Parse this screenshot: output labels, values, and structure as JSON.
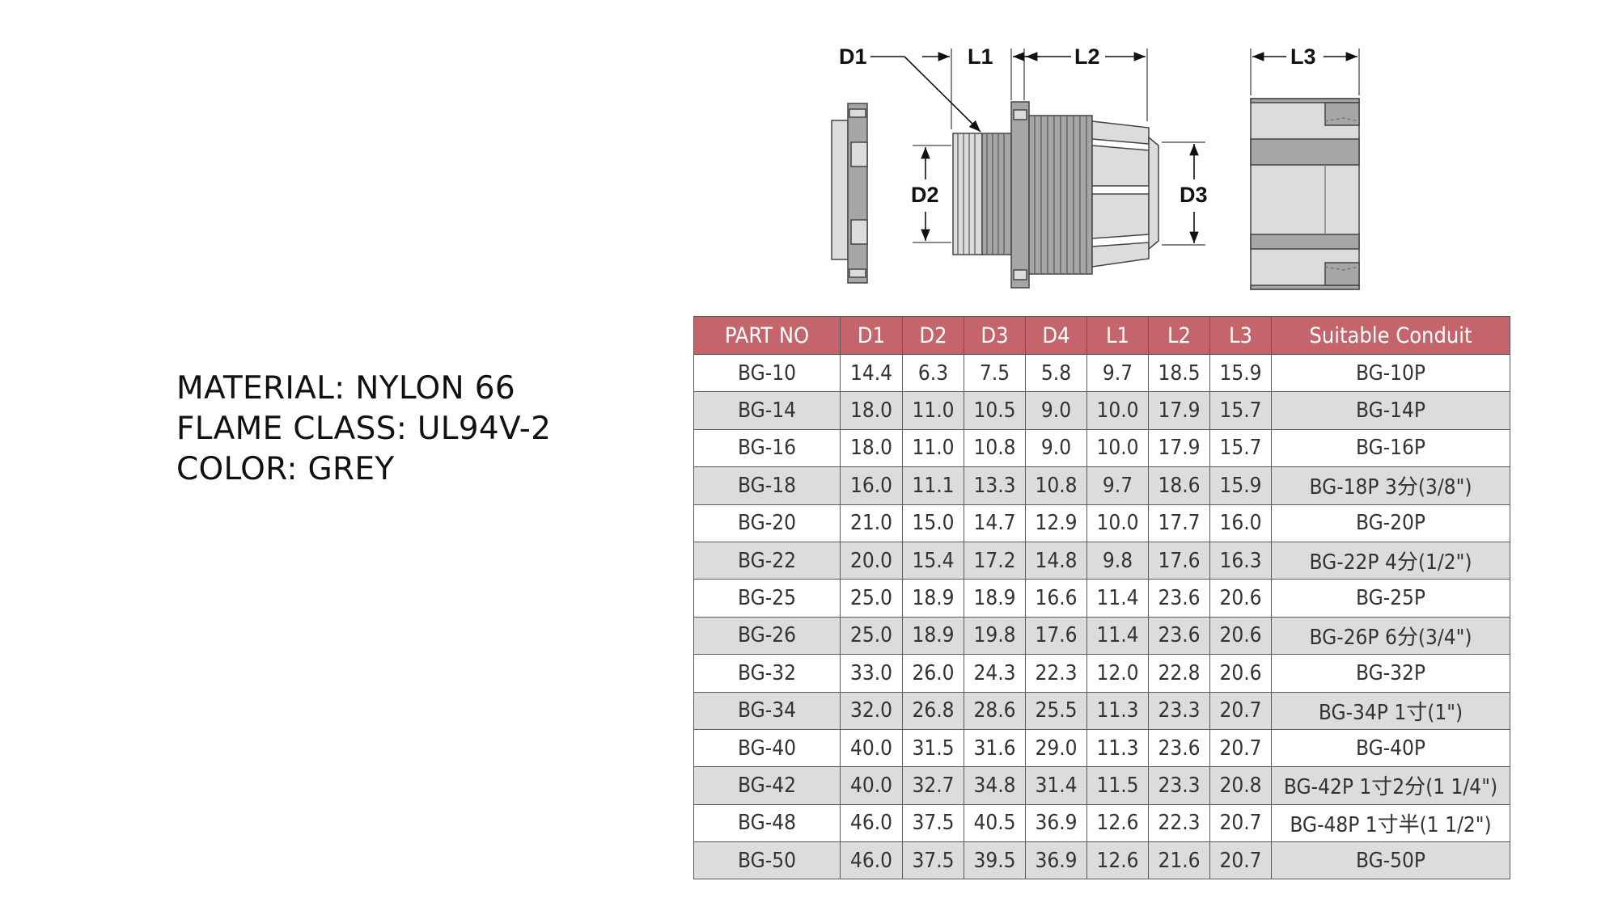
{
  "specs": {
    "material": "MATERIAL: NYLON 66",
    "flame_class": "FLAME CLASS: UL94V-2",
    "color": "COLOR: GREY"
  },
  "drawing": {
    "labels": {
      "d1": "D1",
      "l1": "L1",
      "l2": "L2",
      "l3": "L3",
      "d2": "D2",
      "d3": "D3"
    }
  },
  "table": {
    "headers": [
      "PART NO",
      "D1",
      "D2",
      "D3",
      "D4",
      "L1",
      "L2",
      "L3",
      "Suitable Conduit"
    ],
    "rows": [
      [
        "BG-10",
        "14.4",
        "6.3",
        "7.5",
        "5.8",
        "9.7",
        "18.5",
        "15.9",
        "BG-10P"
      ],
      [
        "BG-14",
        "18.0",
        "11.0",
        "10.5",
        "9.0",
        "10.0",
        "17.9",
        "15.7",
        "BG-14P"
      ],
      [
        "BG-16",
        "18.0",
        "11.0",
        "10.8",
        "9.0",
        "10.0",
        "17.9",
        "15.7",
        "BG-16P"
      ],
      [
        "BG-18",
        "16.0",
        "11.1",
        "13.3",
        "10.8",
        "9.7",
        "18.6",
        "15.9",
        "BG-18P 3分(3/8\")"
      ],
      [
        "BG-20",
        "21.0",
        "15.0",
        "14.7",
        "12.9",
        "10.0",
        "17.7",
        "16.0",
        "BG-20P"
      ],
      [
        "BG-22",
        "20.0",
        "15.4",
        "17.2",
        "14.8",
        "9.8",
        "17.6",
        "16.3",
        "BG-22P 4分(1/2\")"
      ],
      [
        "BG-25",
        "25.0",
        "18.9",
        "18.9",
        "16.6",
        "11.4",
        "23.6",
        "20.6",
        "BG-25P"
      ],
      [
        "BG-26",
        "25.0",
        "18.9",
        "19.8",
        "17.6",
        "11.4",
        "23.6",
        "20.6",
        "BG-26P 6分(3/4\")"
      ],
      [
        "BG-32",
        "33.0",
        "26.0",
        "24.3",
        "22.3",
        "12.0",
        "22.8",
        "20.6",
        "BG-32P"
      ],
      [
        "BG-34",
        "32.0",
        "26.8",
        "28.6",
        "25.5",
        "11.3",
        "23.3",
        "20.7",
        "BG-34P 1寸(1\")"
      ],
      [
        "BG-40",
        "40.0",
        "31.5",
        "31.6",
        "29.0",
        "11.3",
        "23.6",
        "20.7",
        "BG-40P"
      ],
      [
        "BG-42",
        "40.0",
        "32.7",
        "34.8",
        "31.4",
        "11.5",
        "23.3",
        "20.8",
        "BG-42P 1寸2分(1 1/4\")"
      ],
      [
        "BG-48",
        "46.0",
        "37.5",
        "40.5",
        "36.9",
        "12.6",
        "22.3",
        "20.7",
        "BG-48P 1寸半(1 1/2\")"
      ],
      [
        "BG-50",
        "46.0",
        "37.5",
        "39.5",
        "36.9",
        "12.6",
        "21.6",
        "20.7",
        "BG-50P"
      ]
    ]
  },
  "colors": {
    "header_bg": "#c4646b",
    "stripe_bg": "#dcdcdc",
    "part_light": "#dcdcdc",
    "part_dark": "#a6a6a6"
  }
}
